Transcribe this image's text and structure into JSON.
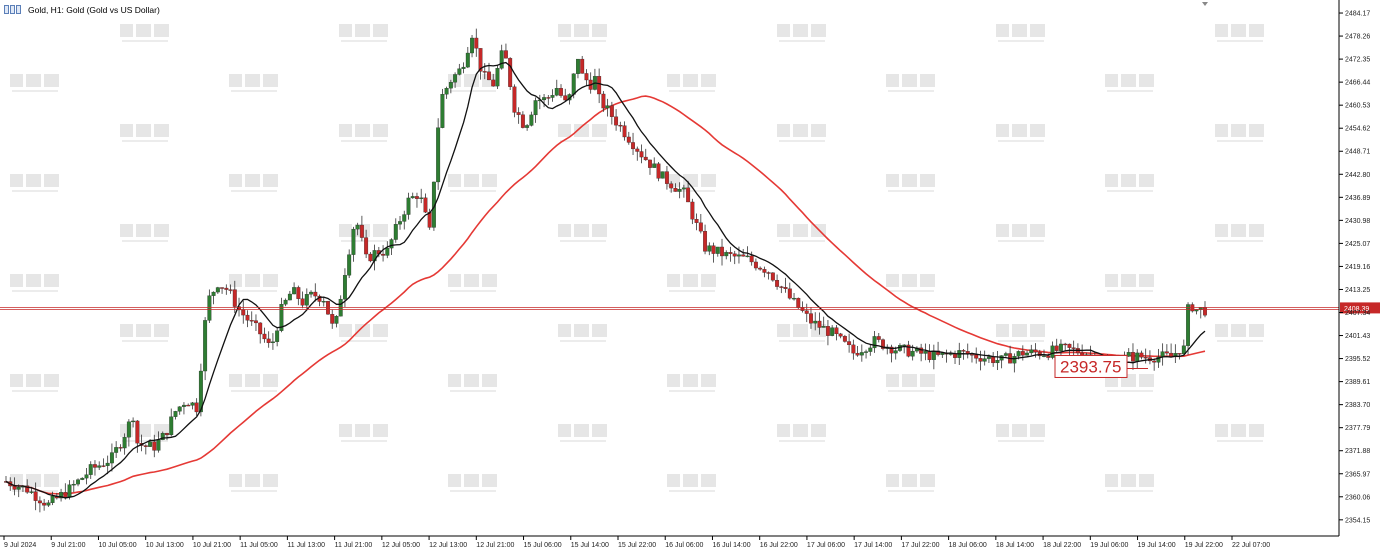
{
  "header": {
    "title": "Gold, H1:  Gold (Gold vs US Dollar)"
  },
  "colors": {
    "bull": "#2e7d32",
    "bear": "#c62828",
    "fast_ma": "#111111",
    "slow_ma": "#e53935",
    "price_line": "#c62828",
    "axis": "#000000"
  },
  "chart_data": {
    "type": "candlestick",
    "title": "Gold, H1:  Gold (Gold vs US Dollar)",
    "timeframe": "H1",
    "symbol": "Gold",
    "ylim": [
      2350,
      2487
    ],
    "y_ticks": [
      "2484.17",
      "2478.26",
      "2472.35",
      "2466.44",
      "2460.53",
      "2454.62",
      "2448.71",
      "2442.80",
      "2436.89",
      "2430.98",
      "2425.07",
      "2419.16",
      "2413.25",
      "2407.34",
      "2401.43",
      "2395.52",
      "2389.61",
      "2383.70",
      "2377.79",
      "2371.88",
      "2365.97",
      "2360.06",
      "2354.15"
    ],
    "x_labels": [
      "9 Jul 2024",
      "9 Jul 21:00",
      "10 Jul 05:00",
      "10 Jul 13:00",
      "10 Jul 21:00",
      "11 Jul 05:00",
      "11 Jul 13:00",
      "11 Jul 21:00",
      "12 Jul 05:00",
      "12 Jul 13:00",
      "12 Jul 21:00",
      "15 Jul 06:00",
      "15 Jul 14:00",
      "15 Jul 22:00",
      "16 Jul 06:00",
      "16 Jul 14:00",
      "16 Jul 22:00",
      "17 Jul 06:00",
      "17 Jul 14:00",
      "17 Jul 22:00",
      "18 Jul 06:00",
      "18 Jul 14:00",
      "18 Jul 22:00",
      "19 Jul 06:00",
      "19 Jul 14:00",
      "19 Jul 22:00",
      "22 Jul 07:00"
    ],
    "current_price": 2408.39,
    "current_price_label": "2408.39",
    "annotation": {
      "text": "2393.75",
      "value": 2393.75
    },
    "series": [
      {
        "kind": "close_path",
        "x_index": [
          0,
          10,
          20,
          30,
          40,
          50,
          55,
          60,
          62,
          65,
          70,
          75,
          80,
          85,
          90,
          95,
          100,
          105,
          110,
          115,
          120,
          125,
          130,
          135,
          140,
          145,
          150,
          155,
          160,
          165,
          170,
          175,
          180,
          185,
          190,
          195,
          200,
          205,
          210,
          215,
          220,
          225,
          230,
          235,
          240,
          245,
          250,
          255,
          260,
          265,
          270,
          272,
          276,
          279
        ],
        "values": [
          2364,
          2362,
          2358,
          2362,
          2367,
          2370,
          2375,
          2381,
          2374,
          2373,
          2373,
          2376,
          2382,
          2385,
          2383,
          2410,
          2415,
          2413,
          2408,
          2405,
          2402,
          2398,
          2408,
          2413,
          2410,
          2412,
          2411,
          2402,
          2418,
          2432,
          2421,
          2423,
          2423,
          2430,
          2436,
          2438,
          2428,
          2462,
          2467,
          2470,
          2479,
          2468,
          2466,
          2475,
          2460,
          2455,
          2462,
          2462,
          2465,
          2460,
          2473,
          2468,
          2466,
          2468
        ]
      },
      {
        "kind": "close_path_2",
        "x_index": [
          0,
          10,
          20,
          30,
          40,
          50,
          60,
          70,
          80,
          90,
          100,
          110,
          120,
          130,
          140,
          150,
          160,
          170,
          180,
          190,
          200,
          210,
          220,
          230,
          240,
          250,
          260,
          270,
          280,
          284,
          286,
          288,
          290,
          292,
          294,
          296
        ],
        "values": [
          2466,
          2462,
          2455,
          2448,
          2442,
          2438,
          2424,
          2422,
          2421,
          2418,
          2411,
          2405,
          2402,
          2397,
          2400,
          2398,
          2397,
          2396,
          2397,
          2396,
          2395,
          2397,
          2397,
          2398,
          2397,
          2393,
          2396,
          2396,
          2396,
          2398,
          2398,
          2408,
          2409,
          2408,
          2408,
          2408
        ]
      }
    ]
  }
}
